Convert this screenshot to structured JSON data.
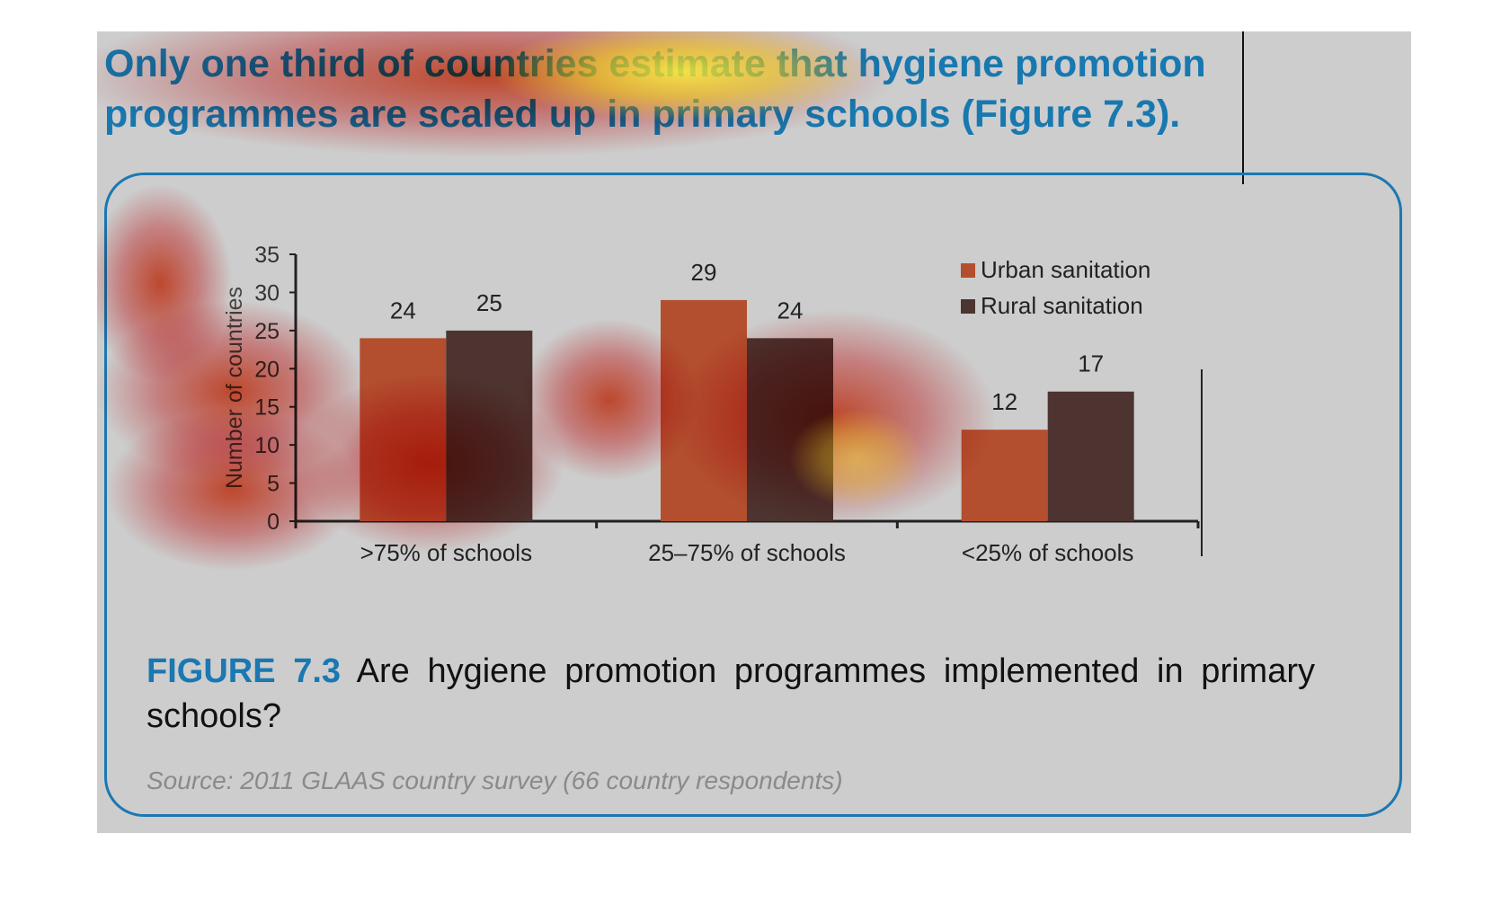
{
  "headline": {
    "text": "Only one third of countries estimate that hygiene promotion programmes are scaled up in primary schools (Figure 7.3)."
  },
  "figure": {
    "label": "FIGURE 7.3",
    "caption": "Are hygiene promotion programmes implemented in primary schools?",
    "source": "Source: 2011 GLAAS country survey (66 country respondents)"
  },
  "colors": {
    "urban": "#b34f2f",
    "rural": "#4d3430",
    "accent": "#1a78b2",
    "background": "#cdcdcd"
  },
  "chart_data": {
    "type": "bar",
    "categories": [
      ">75% of schools",
      "25–75% of schools",
      "<25% of schools"
    ],
    "series": [
      {
        "name": "Urban sanitation",
        "values": [
          24,
          29,
          12
        ],
        "color": "#b34f2f"
      },
      {
        "name": "Rural sanitation",
        "values": [
          25,
          24,
          17
        ],
        "color": "#4d3430"
      }
    ],
    "ylabel": "Number of countries",
    "xlabel": "",
    "ylim": [
      0,
      35
    ],
    "yticks": [
      0,
      5,
      10,
      15,
      20,
      25,
      30,
      35
    ],
    "grid": false,
    "legend": "top-right",
    "data_labels": true
  }
}
